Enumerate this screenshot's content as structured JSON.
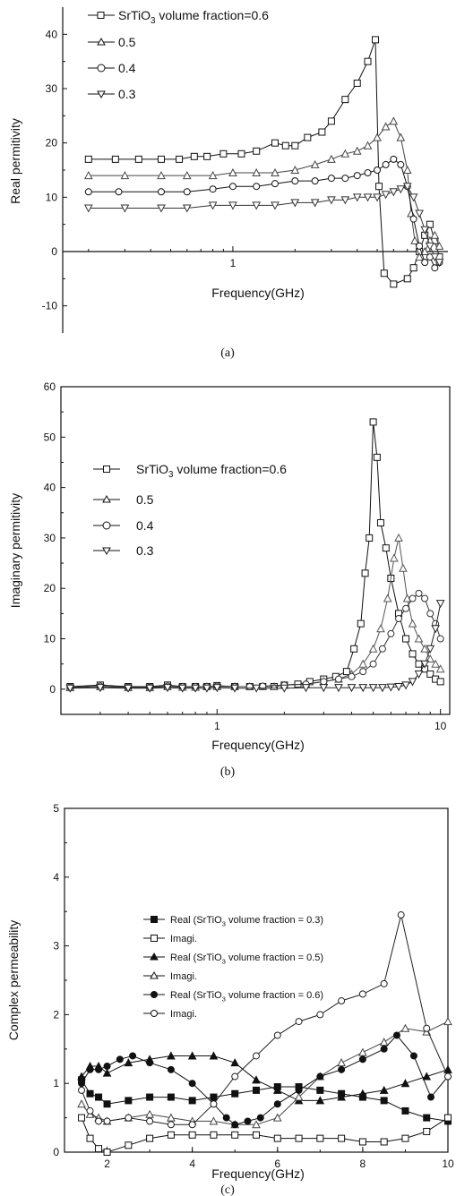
{
  "chart_data": [
    {
      "type": "line",
      "caption": "(a)",
      "xlabel": "Frequency(GHz)",
      "ylabel": "Real permitivity",
      "xscale": "log",
      "xlim": [
        0.15,
        11
      ],
      "ylim": [
        -15,
        45
      ],
      "x_ticks": [
        {
          "v": 1,
          "label": "1"
        }
      ],
      "y_ticks": [
        {
          "v": -10,
          "label": "-10"
        },
        {
          "v": 0,
          "label": "0"
        },
        {
          "v": 10,
          "label": "10"
        },
        {
          "v": 20,
          "label": "20"
        },
        {
          "v": 30,
          "label": "30"
        },
        {
          "v": 40,
          "label": "40"
        }
      ],
      "legend_position": "top-left",
      "legend_labels": [
        "SrTiO3 volume fraction=0.6",
        "0.5",
        "0.4",
        "0.3"
      ],
      "series": [
        {
          "name": "SrTiO3 volume fraction=0.6",
          "marker": "square",
          "x": [
            0.2,
            0.27,
            0.35,
            0.45,
            0.55,
            0.65,
            0.75,
            0.9,
            1.1,
            1.3,
            1.6,
            1.8,
            2.0,
            2.3,
            2.7,
            3.0,
            3.5,
            4.0,
            4.5,
            4.9,
            5.1,
            5.4,
            6.0,
            7.0,
            7.5,
            8.0,
            8.5,
            9.0,
            9.5,
            10.0
          ],
          "y": [
            17,
            17,
            17,
            17,
            17,
            17.5,
            17.5,
            18,
            18,
            18.5,
            20,
            19.5,
            19.5,
            21,
            22,
            24,
            28,
            31,
            35,
            39,
            12,
            -4,
            -6,
            -5,
            -3,
            0,
            3,
            5,
            2,
            -1
          ]
        },
        {
          "name": "0.5",
          "marker": "triangle-up",
          "x": [
            0.2,
            0.3,
            0.45,
            0.6,
            0.8,
            1.0,
            1.3,
            1.6,
            2.0,
            2.5,
            3.0,
            3.5,
            4.0,
            4.5,
            5.0,
            5.5,
            6.0,
            6.5,
            7.0,
            7.3,
            7.6,
            8.0,
            8.5,
            9.0,
            9.5,
            10.0
          ],
          "y": [
            14,
            14,
            14,
            14,
            14,
            14.5,
            14.5,
            14.5,
            15,
            16,
            17,
            18,
            18.5,
            19.5,
            21,
            23,
            24,
            21,
            15,
            7,
            2,
            -1,
            0,
            2,
            3,
            1
          ]
        },
        {
          "name": "0.4",
          "marker": "circle",
          "x": [
            0.2,
            0.28,
            0.45,
            0.6,
            0.8,
            1.0,
            1.3,
            1.6,
            2.0,
            2.5,
            3.0,
            3.5,
            4.0,
            4.5,
            5.0,
            5.5,
            6.0,
            6.5,
            7.0,
            7.5,
            8.0,
            8.5,
            9.0,
            9.5,
            10.0
          ],
          "y": [
            11,
            11,
            11,
            11,
            11.5,
            12,
            12,
            12.5,
            13,
            13,
            13.5,
            13.5,
            14,
            14.5,
            15,
            16,
            17,
            16,
            12,
            6,
            1,
            -2,
            -1,
            -3,
            -2
          ]
        },
        {
          "name": "0.3",
          "marker": "triangle-down",
          "x": [
            0.2,
            0.3,
            0.45,
            0.6,
            0.8,
            1.0,
            1.3,
            1.6,
            2.0,
            2.5,
            3.0,
            3.5,
            4.0,
            4.5,
            5.0,
            5.5,
            6.0,
            6.5,
            7.0,
            7.5,
            8.0,
            8.5,
            9.0,
            9.5,
            10.0
          ],
          "y": [
            8,
            8,
            8,
            8,
            8.5,
            8.5,
            8.5,
            8.5,
            9,
            9,
            9.5,
            9.5,
            10,
            10,
            10,
            10.5,
            11,
            11.5,
            12,
            10,
            7,
            4,
            1,
            -1,
            -2
          ]
        }
      ]
    },
    {
      "type": "line",
      "caption": "(b)",
      "xlabel": "Frequency(GHz)",
      "ylabel": "Imaginary permitivity",
      "xscale": "log",
      "xlim": [
        0.2,
        11
      ],
      "ylim": [
        -5,
        60
      ],
      "x_ticks": [
        {
          "v": 1,
          "label": "1"
        },
        {
          "v": 10,
          "label": "10"
        }
      ],
      "y_ticks": [
        {
          "v": 0,
          "label": "0"
        },
        {
          "v": 10,
          "label": "10"
        },
        {
          "v": 20,
          "label": "20"
        },
        {
          "v": 30,
          "label": "30"
        },
        {
          "v": 40,
          "label": "40"
        },
        {
          "v": 50,
          "label": "50"
        },
        {
          "v": 60,
          "label": "60"
        }
      ],
      "legend_position": "top-left",
      "legend_labels": [
        "SrTiO3 volume fraction=0.6",
        "0.5",
        "0.4",
        "0.3"
      ],
      "series": [
        {
          "name": "SrTiO3 volume fraction=0.6",
          "marker": "square",
          "x": [
            0.22,
            0.3,
            0.4,
            0.5,
            0.6,
            0.7,
            0.8,
            0.9,
            1.0,
            1.2,
            1.4,
            1.6,
            1.8,
            2.0,
            2.3,
            2.6,
            3.0,
            3.4,
            3.8,
            4.1,
            4.4,
            4.6,
            4.8,
            5.0,
            5.2,
            5.4,
            5.7,
            6.0,
            6.5,
            7.0,
            7.5,
            8.0,
            8.5,
            9.0,
            9.5,
            10.0
          ],
          "y": [
            0.5,
            0.8,
            0.5,
            0.5,
            0.8,
            0.5,
            0.5,
            0.5,
            0.7,
            0.5,
            0.5,
            0.5,
            0.5,
            0.8,
            1,
            1.5,
            2,
            2.5,
            3.5,
            8,
            13,
            23,
            30,
            53,
            46,
            33,
            28,
            22,
            15,
            10,
            7,
            5,
            4,
            3,
            2,
            1.5
          ]
        },
        {
          "name": "0.5",
          "marker": "triangle-up",
          "x": [
            0.22,
            0.3,
            0.4,
            0.5,
            0.6,
            0.7,
            0.8,
            0.9,
            1.0,
            1.2,
            1.4,
            1.6,
            1.8,
            2.0,
            2.5,
            3.0,
            3.5,
            4.0,
            4.5,
            5.0,
            5.4,
            5.8,
            6.2,
            6.5,
            6.8,
            7.1,
            7.5,
            8.0,
            8.5,
            9.0,
            9.5,
            10.0
          ],
          "y": [
            0.3,
            0.5,
            0.3,
            0.3,
            0.5,
            0.4,
            0.4,
            0.5,
            0.5,
            0.5,
            0.5,
            0.5,
            0.5,
            0.8,
            1,
            1.5,
            2,
            3,
            5,
            8,
            12,
            18,
            26,
            30,
            24,
            18,
            13,
            10,
            8,
            6,
            5,
            4
          ]
        },
        {
          "name": "0.4",
          "marker": "circle",
          "x": [
            0.22,
            0.3,
            0.4,
            0.5,
            0.6,
            0.7,
            0.8,
            0.9,
            1.0,
            1.2,
            1.4,
            1.6,
            2.0,
            2.5,
            3.0,
            3.5,
            4.0,
            4.5,
            5.0,
            5.5,
            6.0,
            6.5,
            7.0,
            7.5,
            8.0,
            8.5,
            9.0,
            9.5,
            10.0
          ],
          "y": [
            0.4,
            0.6,
            0.4,
            0.4,
            0.6,
            0.5,
            0.5,
            0.5,
            0.6,
            0.5,
            0.5,
            0.6,
            0.8,
            1,
            1.5,
            2,
            2.5,
            3.5,
            5,
            8,
            11,
            14,
            16,
            18,
            19,
            18,
            15,
            13,
            10
          ]
        },
        {
          "name": "0.3",
          "marker": "triangle-down",
          "x": [
            0.22,
            0.3,
            0.4,
            0.5,
            0.6,
            0.7,
            0.8,
            0.9,
            1.0,
            1.2,
            1.5,
            2.0,
            2.5,
            3.0,
            3.5,
            4.0,
            4.5,
            5.0,
            5.5,
            6.0,
            6.5,
            7.0,
            7.5,
            8.0,
            8.5,
            9.0,
            9.5,
            10.0
          ],
          "y": [
            0.2,
            0.3,
            0.2,
            0.2,
            0.3,
            0.2,
            0.2,
            0.2,
            0.3,
            0.2,
            0.2,
            0.2,
            0.3,
            0.3,
            0.3,
            0.3,
            0.3,
            0.3,
            0.3,
            0.4,
            0.5,
            0.8,
            1.5,
            3,
            5,
            8,
            12,
            17
          ]
        }
      ]
    },
    {
      "type": "line",
      "caption": "(c)",
      "xlabel": "Frequency(GHz)",
      "ylabel": "Complex permeability",
      "xscale": "linear",
      "xlim": [
        1,
        10
      ],
      "ylim": [
        0,
        5
      ],
      "x_ticks": [
        {
          "v": 2,
          "label": "2"
        },
        {
          "v": 4,
          "label": "4"
        },
        {
          "v": 6,
          "label": "6"
        },
        {
          "v": 8,
          "label": "8"
        },
        {
          "v": 10,
          "label": "10"
        }
      ],
      "y_ticks": [
        {
          "v": 0,
          "label": "0"
        },
        {
          "v": 1,
          "label": "1"
        },
        {
          "v": 2,
          "label": "2"
        },
        {
          "v": 3,
          "label": "3"
        },
        {
          "v": 4,
          "label": "4"
        },
        {
          "v": 5,
          "label": "5"
        }
      ],
      "legend_position": "top-center",
      "legend_labels": [
        "Real (SrTiO3 volume fraction = 0.3)",
        "Imagi.",
        "Real (SrTiO3 volume fraction = 0.5)",
        "Imagi.",
        "Real (SrTiO3 volume fraction = 0.6)",
        "Imagi."
      ],
      "series": [
        {
          "name": "Real (SrTiO3 volume fraction = 0.3)",
          "marker": "square-filled",
          "x": [
            1.4,
            1.6,
            1.8,
            2.0,
            2.5,
            3.0,
            3.5,
            4.0,
            4.5,
            5.0,
            5.5,
            6.0,
            6.5,
            7.0,
            7.5,
            8.0,
            8.5,
            9.0,
            9.5,
            10.0
          ],
          "y": [
            1.05,
            0.85,
            0.8,
            0.7,
            0.75,
            0.8,
            0.8,
            0.75,
            0.8,
            0.85,
            0.9,
            0.95,
            0.95,
            0.9,
            0.85,
            0.8,
            0.75,
            0.6,
            0.5,
            0.45
          ]
        },
        {
          "name": "Imagi.",
          "marker": "square",
          "x": [
            1.4,
            1.6,
            1.8,
            2.0,
            2.5,
            3.0,
            3.5,
            4.0,
            4.5,
            5.0,
            5.5,
            6.0,
            6.5,
            7.0,
            7.5,
            8.0,
            8.5,
            9.0,
            9.5,
            10.0
          ],
          "y": [
            0.5,
            0.2,
            0.05,
            0.0,
            0.1,
            0.2,
            0.25,
            0.25,
            0.25,
            0.25,
            0.25,
            0.2,
            0.2,
            0.2,
            0.2,
            0.15,
            0.15,
            0.2,
            0.3,
            0.5
          ]
        },
        {
          "name": "Real (SrTiO3 volume fraction = 0.5)",
          "marker": "triangle-filled",
          "x": [
            1.4,
            1.6,
            1.8,
            2.0,
            2.5,
            3.0,
            3.5,
            4.0,
            4.5,
            5.0,
            5.5,
            6.0,
            6.5,
            7.0,
            7.5,
            8.0,
            8.5,
            9.0,
            9.5,
            10.0
          ],
          "y": [
            1.1,
            1.25,
            1.25,
            1.15,
            1.3,
            1.35,
            1.4,
            1.4,
            1.4,
            1.3,
            1.05,
            0.9,
            0.75,
            0.75,
            0.8,
            0.85,
            0.9,
            1.0,
            1.1,
            1.2
          ]
        },
        {
          "name": "Imagi.",
          "marker": "triangle",
          "x": [
            1.4,
            1.6,
            1.8,
            2.0,
            2.5,
            3.0,
            3.5,
            4.0,
            4.5,
            5.0,
            5.5,
            6.0,
            6.5,
            7.0,
            7.5,
            8.0,
            8.5,
            9.0,
            9.5,
            10.0
          ],
          "y": [
            0.7,
            0.55,
            0.5,
            0.45,
            0.5,
            0.55,
            0.5,
            0.45,
            0.45,
            0.4,
            0.4,
            0.5,
            0.8,
            1.1,
            1.3,
            1.45,
            1.6,
            1.8,
            1.75,
            1.9
          ]
        },
        {
          "name": "Real (SrTiO3 volume fraction = 0.6)",
          "marker": "circle-filled",
          "x": [
            1.4,
            1.6,
            1.8,
            2.0,
            2.3,
            2.6,
            3.0,
            3.5,
            4.0,
            4.5,
            4.8,
            5.0,
            5.3,
            5.6,
            6.0,
            6.5,
            7.0,
            7.5,
            8.0,
            8.5,
            8.8,
            9.2,
            9.6,
            10.0
          ],
          "y": [
            1.0,
            1.2,
            1.2,
            1.25,
            1.35,
            1.4,
            1.3,
            1.2,
            1.0,
            0.7,
            0.5,
            0.4,
            0.45,
            0.5,
            0.7,
            0.9,
            1.1,
            1.2,
            1.35,
            1.5,
            1.7,
            1.4,
            0.8,
            1.1
          ]
        },
        {
          "name": "Imagi.",
          "marker": "circle",
          "x": [
            1.4,
            1.6,
            1.8,
            2.0,
            2.5,
            3.0,
            3.5,
            4.0,
            4.5,
            5.0,
            5.5,
            6.0,
            6.5,
            7.0,
            7.5,
            8.0,
            8.5,
            8.9,
            9.5,
            10.0
          ],
          "y": [
            0.9,
            0.6,
            0.45,
            0.45,
            0.5,
            0.45,
            0.4,
            0.4,
            0.7,
            1.1,
            1.4,
            1.7,
            1.9,
            2.0,
            2.2,
            2.3,
            2.45,
            3.45,
            1.8,
            1.1
          ]
        }
      ]
    }
  ]
}
